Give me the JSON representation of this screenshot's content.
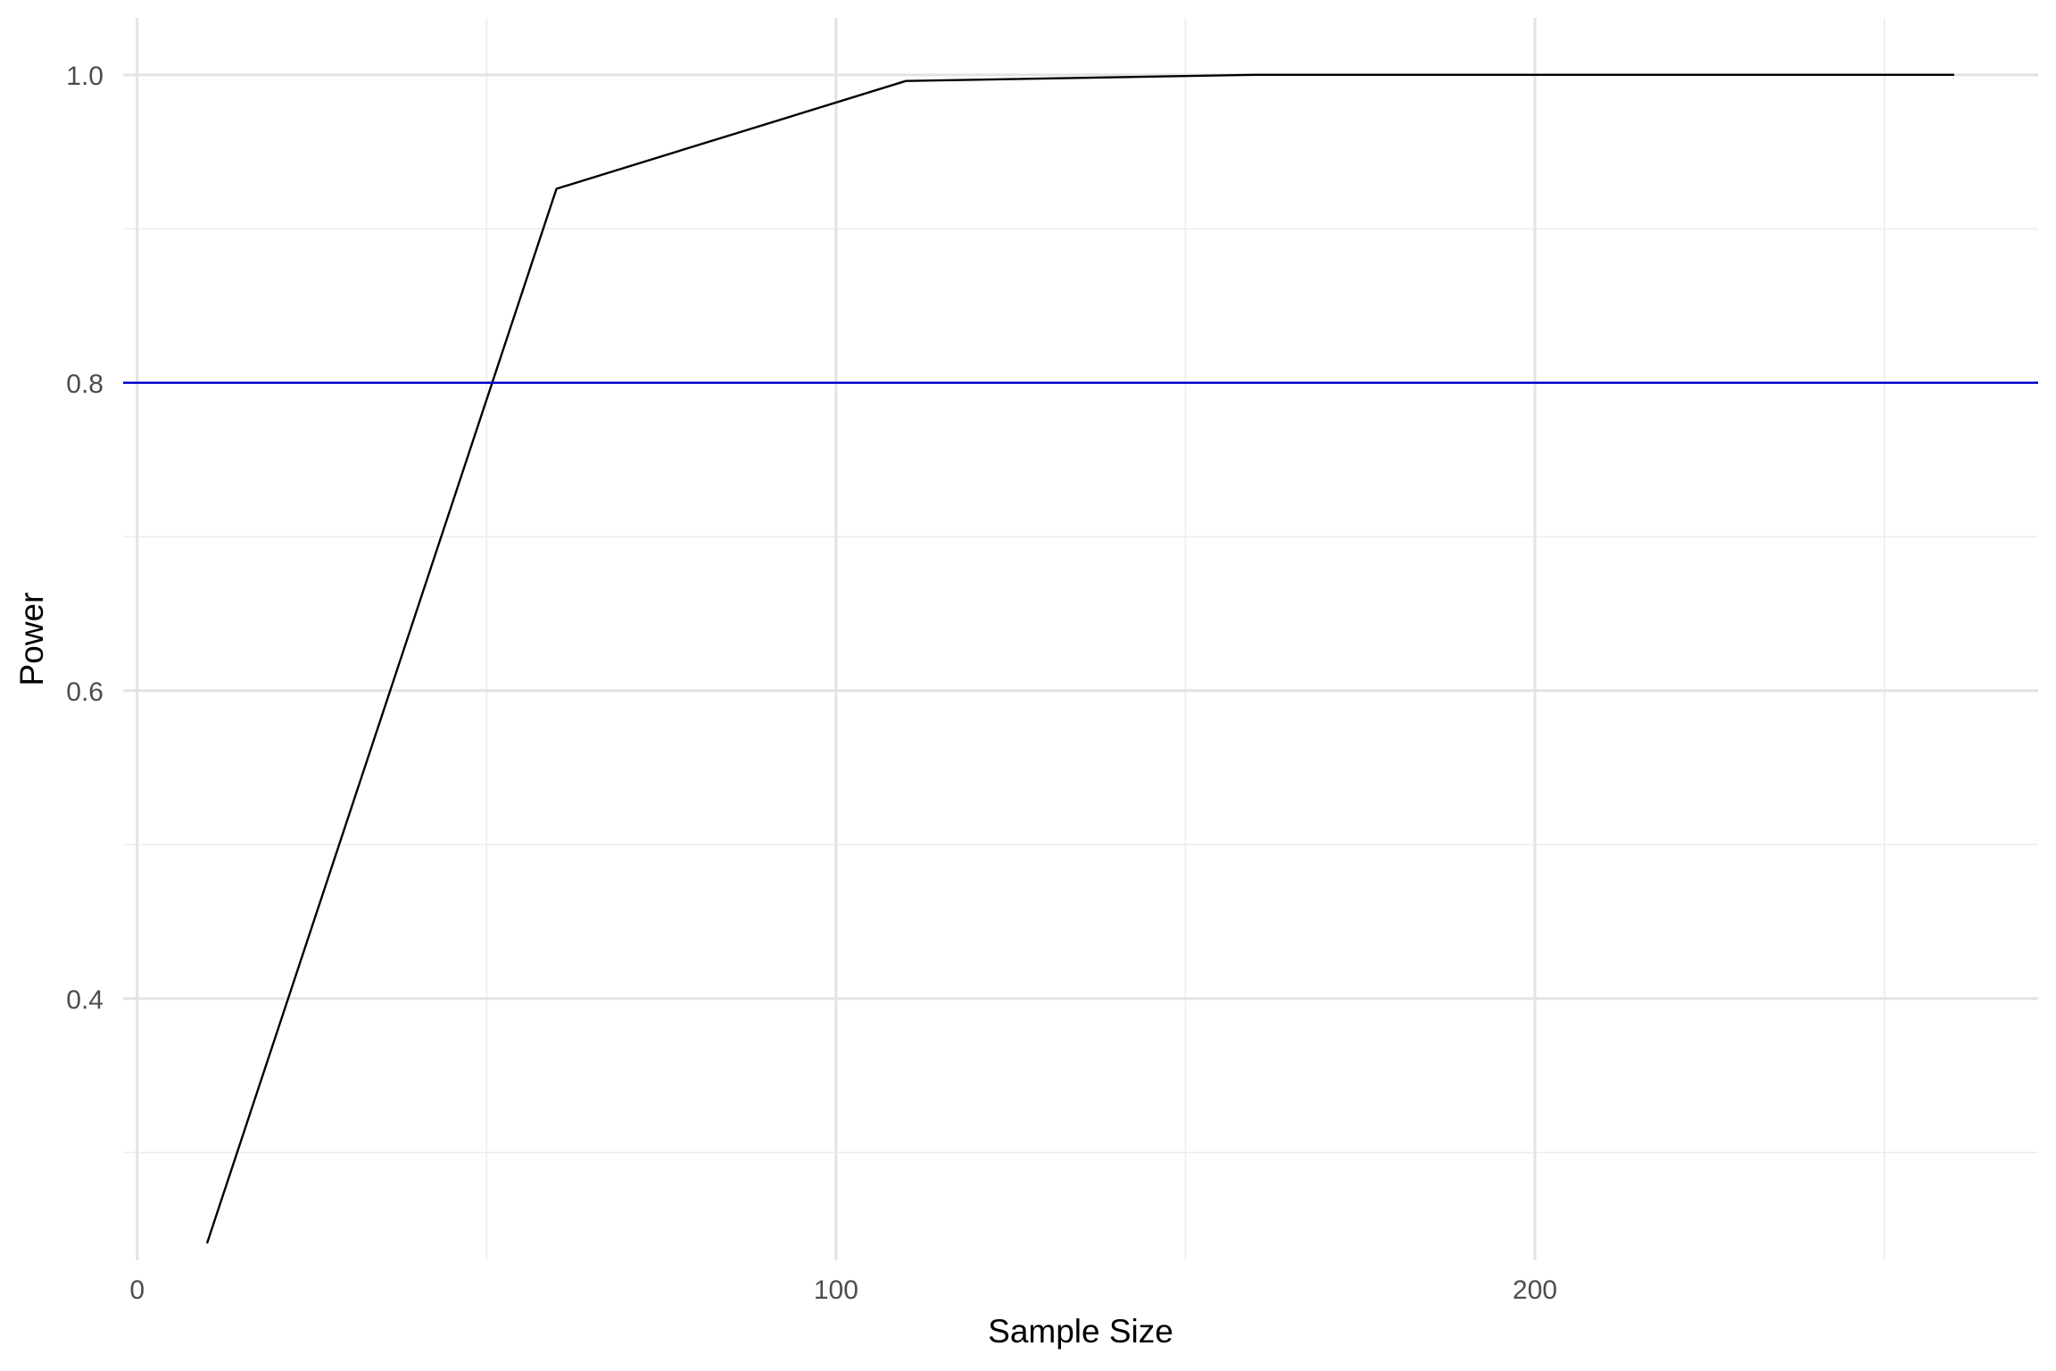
{
  "chart_data": {
    "type": "line",
    "title": "",
    "xlabel": "Sample Size",
    "ylabel": "Power",
    "xlim": [
      -2,
      272
    ],
    "ylim": [
      0.23,
      1.037
    ],
    "x_ticks": [
      0,
      100,
      200
    ],
    "x_tick_labels": [
      "0",
      "100",
      "200"
    ],
    "x_minor_ticks": [
      50,
      150,
      250
    ],
    "y_ticks": [
      0.4,
      0.6,
      0.8,
      1.0
    ],
    "y_tick_labels": [
      "0.4",
      "0.6",
      "0.8",
      "1.0"
    ],
    "y_minor_ticks": [
      0.3,
      0.5,
      0.7,
      0.9
    ],
    "grid": true,
    "legend": "none",
    "series": [
      {
        "color": "#000000",
        "x": [
          10,
          60,
          110,
          160,
          210,
          260
        ],
        "y": [
          0.241,
          0.926,
          0.996,
          1.0,
          1.0,
          1.0
        ]
      }
    ],
    "reference_lines": [
      {
        "orientation": "horizontal",
        "y": 0.8,
        "color": "#0000cd"
      }
    ]
  }
}
